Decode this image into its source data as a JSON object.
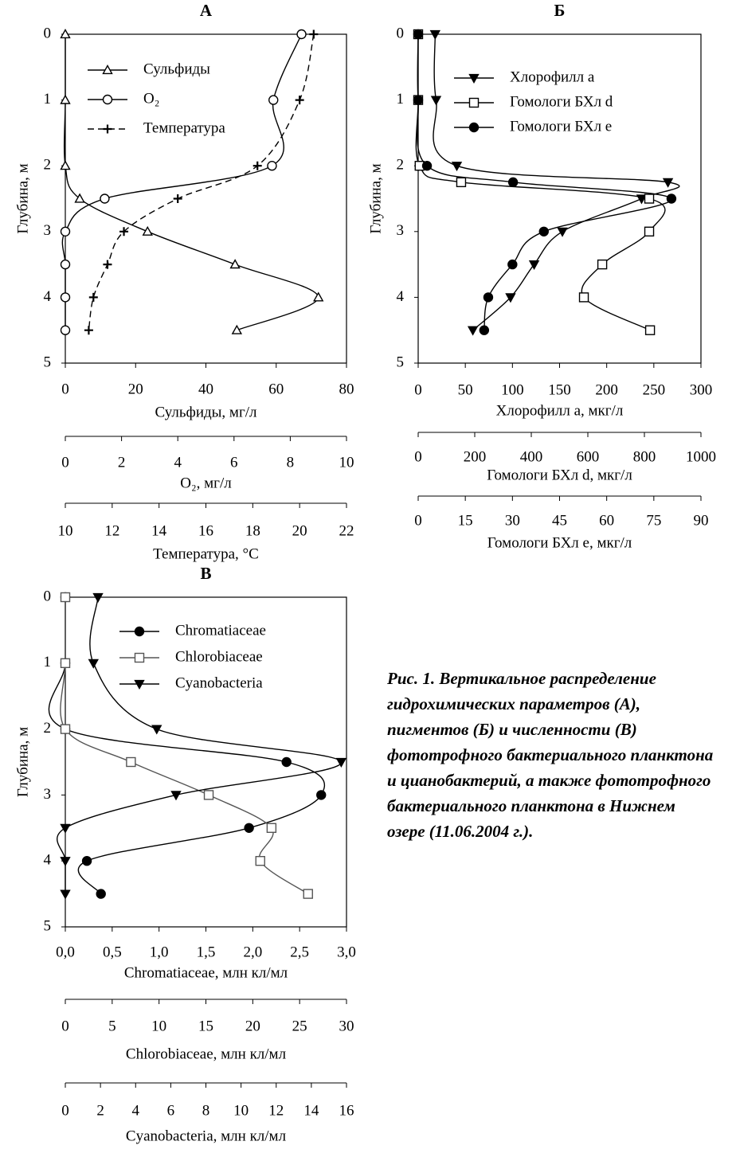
{
  "chart_data": [
    {
      "type": "line",
      "title": "А",
      "ylabel": "Глубина, м",
      "y": [
        0,
        1,
        2,
        2.5,
        3,
        3.5,
        4,
        4.5
      ],
      "ylim": [
        0,
        5
      ],
      "yticks": [
        0,
        1,
        2,
        3,
        4,
        5
      ],
      "xaxes": [
        {
          "label": "Сульфиды, мг/л",
          "xlim": [
            0,
            80
          ],
          "xticks": [
            0,
            20,
            40,
            60,
            80
          ]
        },
        {
          "label": "O₂, мг/л",
          "xlim": [
            0,
            10
          ],
          "xticks": [
            0,
            2,
            4,
            6,
            8,
            10
          ]
        },
        {
          "label": "Температура, °С",
          "xlim": [
            10,
            22
          ],
          "xticks": [
            10,
            12,
            14,
            16,
            18,
            20,
            22
          ]
        }
      ],
      "series": [
        {
          "name": "Сульфиды",
          "axis": 0,
          "marker": "triangle-up",
          "color": "#000",
          "dash": false,
          "values": [
            0,
            0,
            0,
            4.1,
            23.4,
            48.3,
            72,
            48.8
          ]
        },
        {
          "name": "O₂",
          "axis": 1,
          "marker": "circle",
          "color": "#000",
          "dash": false,
          "values": [
            8.4,
            7.4,
            7.35,
            1.4,
            0,
            0,
            0,
            0
          ]
        },
        {
          "name": "Температура",
          "axis": 2,
          "marker": "plus",
          "color": "#000",
          "dash": true,
          "values": [
            20.6,
            20.0,
            18.2,
            14.8,
            12.5,
            11.8,
            11.2,
            11.0
          ]
        }
      ]
    },
    {
      "type": "line",
      "title": "Б",
      "ylabel": "Глубина, м",
      "y": [
        0,
        1,
        2,
        2.25,
        2.5,
        3,
        3.5,
        4,
        4.5
      ],
      "ylim": [
        0,
        5
      ],
      "yticks": [
        0,
        1,
        2,
        3,
        4,
        5
      ],
      "xaxes": [
        {
          "label": "Хлорофилл a, мкг/л",
          "xlim": [
            0,
            300
          ],
          "xticks": [
            0,
            50,
            100,
            150,
            200,
            250,
            300
          ]
        },
        {
          "label": "Гомологи БХл d, мкг/л",
          "xlim": [
            0,
            1000
          ],
          "xticks": [
            0,
            200,
            400,
            600,
            800,
            1000
          ]
        },
        {
          "label": "Гомологи БХл e, мкг/л",
          "xlim": [
            0,
            90
          ],
          "xticks": [
            0,
            15,
            30,
            45,
            60,
            75,
            90
          ]
        }
      ],
      "series": [
        {
          "name": "Хлорофилл a",
          "axis": 0,
          "marker": "triangle-down",
          "color": "#000",
          "dash": false,
          "values": [
            18,
            19,
            41,
            265,
            237,
            153,
            123,
            98,
            58
          ]
        },
        {
          "name": "Гомологи БХл d",
          "axis": 1,
          "marker": "square",
          "color": "#000",
          "dash": false,
          "values": [
            0,
            0,
            5,
            152,
            817,
            817,
            651,
            586,
            820
          ]
        },
        {
          "name": "Гомологи БХл e",
          "axis": 2,
          "marker": "circle-filled",
          "color": "#000",
          "dash": false,
          "values": [
            0,
            0,
            2.8,
            30.2,
            80.6,
            40,
            30,
            22.3,
            21
          ]
        }
      ]
    },
    {
      "type": "line",
      "title": "В",
      "ylabel": "Глубина, м",
      "y": [
        0,
        1,
        2,
        2.5,
        3,
        3.5,
        4,
        4.5
      ],
      "ylim": [
        0,
        5
      ],
      "yticks": [
        0,
        1,
        2,
        3,
        4,
        5
      ],
      "xaxes": [
        {
          "label": "Chromatiaceae, млн кл/мл",
          "xlim": [
            0,
            3
          ],
          "xticks": [
            {
              "value": 0,
              "label": "0,0"
            },
            {
              "value": 0.5,
              "label": "0,5"
            },
            {
              "value": 1,
              "label": "1,0"
            },
            {
              "value": 1.5,
              "label": "1,5"
            },
            {
              "value": 2,
              "label": "2,0"
            },
            {
              "value": 2.5,
              "label": "2,5"
            },
            {
              "value": 3,
              "label": "3,0"
            }
          ]
        },
        {
          "label": "Chlorobiaceae, млн кл/мл",
          "xlim": [
            0,
            30
          ],
          "xticks": [
            0,
            5,
            10,
            15,
            20,
            25,
            30
          ]
        },
        {
          "label": "Cyanobacteria, млн кл/мл",
          "xlim": [
            0,
            16
          ],
          "xticks": [
            0,
            2,
            4,
            6,
            8,
            10,
            12,
            14,
            16
          ]
        }
      ],
      "series": [
        {
          "name": "Chromatiaceae",
          "axis": 0,
          "marker": "circle-filled",
          "color": "#000",
          "dash": false,
          "values": [
            0,
            0,
            0,
            2.36,
            2.73,
            1.96,
            0.23,
            0.38
          ]
        },
        {
          "name": "Chlorobiaceae",
          "axis": 1,
          "marker": "square",
          "color": "#555",
          "dash": false,
          "values": [
            0,
            0,
            0,
            7.0,
            15.3,
            22.0,
            20.8,
            25.9
          ]
        },
        {
          "name": "Cyanobacteria",
          "axis": 2,
          "marker": "triangle-down",
          "color": "#000",
          "dash": false,
          "values": [
            1.86,
            1.6,
            5.2,
            15.7,
            6.3,
            0,
            0,
            0
          ]
        }
      ]
    }
  ],
  "caption": "Рис. 1. Вертикальное распределение гидрохимических параметров (А), пигментов (Б) и численности (В) фототрофного бактериального планктона и цианобактерий, а также фототрофного бактериального планктона в Нижнем озере (11.06.2004 г.)."
}
